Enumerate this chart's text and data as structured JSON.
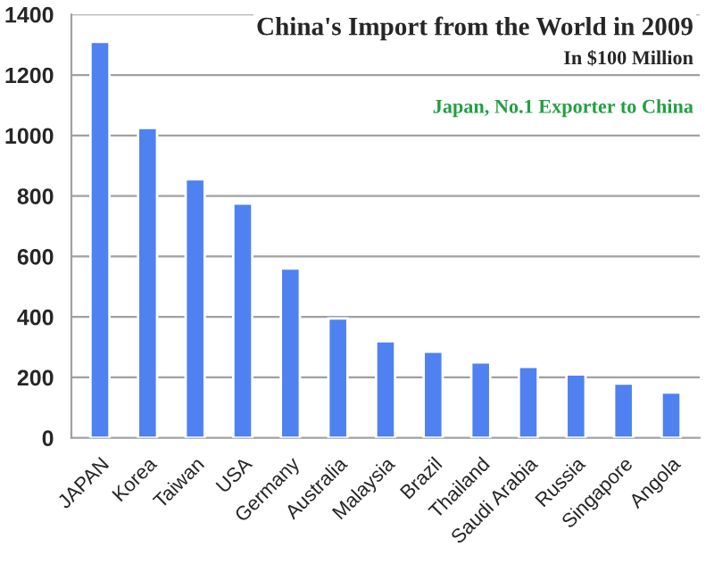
{
  "chart_data": {
    "type": "bar",
    "title": "China's Import from the World in 2009",
    "subtitle": "In $100 Million",
    "annotations": [
      "Japan, No.1 Exporter to China"
    ],
    "categories": [
      "JAPAN",
      "Korea",
      "Taiwan",
      "USA",
      "Germany",
      "Australia",
      "Malaysia",
      "Brazil",
      "Thailand",
      "Saudi Arabia",
      "Russia",
      "Singapore",
      "Angola"
    ],
    "values": [
      1310,
      1025,
      855,
      775,
      560,
      395,
      320,
      285,
      250,
      235,
      210,
      180,
      150
    ],
    "color": "#4f81f0",
    "ylim": [
      0,
      1400
    ],
    "yticks": [
      0,
      200,
      400,
      600,
      800,
      1000,
      1200,
      1400
    ],
    "grid": "y"
  }
}
